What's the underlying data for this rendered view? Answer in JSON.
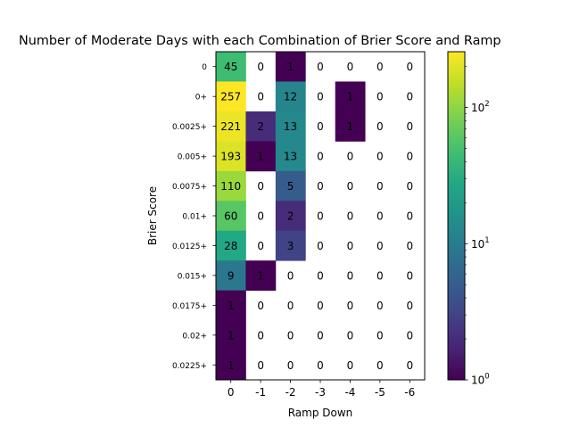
{
  "chart_data": {
    "type": "heatmap",
    "title": "Number of Moderate Days with each Combination of Brier Score and Ramp",
    "xlabel": "Ramp Down",
    "ylabel": "Brier Score",
    "x_categories": [
      "0",
      "-1",
      "-2",
      "-3",
      "-4",
      "-5",
      "-6"
    ],
    "y_categories": [
      "0",
      "0+",
      "0.0025+",
      "0.005+",
      "0.0075+",
      "0.01+",
      "0.0125+",
      "0.015+",
      "0.0175+",
      "0.02+",
      "0.0225+"
    ],
    "values": [
      [
        45,
        0,
        1,
        0,
        0,
        0,
        0
      ],
      [
        257,
        0,
        12,
        0,
        1,
        0,
        0
      ],
      [
        221,
        2,
        13,
        0,
        1,
        0,
        0
      ],
      [
        193,
        1,
        13,
        0,
        0,
        0,
        0
      ],
      [
        110,
        0,
        5,
        0,
        0,
        0,
        0
      ],
      [
        60,
        0,
        2,
        0,
        0,
        0,
        0
      ],
      [
        28,
        0,
        3,
        0,
        0,
        0,
        0
      ],
      [
        9,
        1,
        0,
        0,
        0,
        0,
        0
      ],
      [
        1,
        0,
        0,
        0,
        0,
        0,
        0
      ],
      [
        1,
        0,
        0,
        0,
        0,
        0,
        0
      ],
      [
        1,
        0,
        0,
        0,
        0,
        0,
        0
      ]
    ],
    "colormap": "viridis",
    "color_scale": "log",
    "zero_cells": "blank",
    "colorbar": {
      "min": 1,
      "max": 257,
      "tick_values": [
        1,
        10,
        100
      ],
      "tick_labels": [
        "10^0",
        "10^1",
        "10^2"
      ]
    }
  }
}
